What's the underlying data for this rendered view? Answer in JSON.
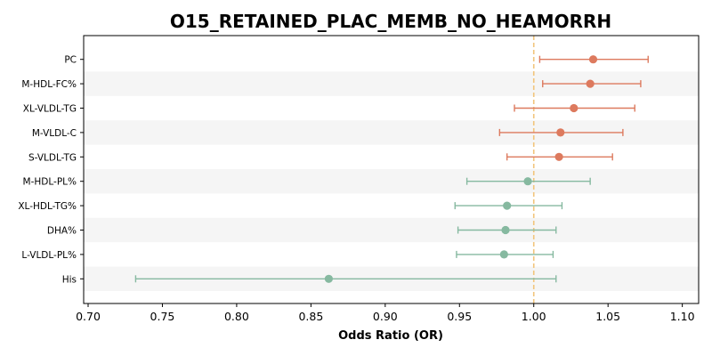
{
  "chart_data": {
    "type": "forest",
    "title": "O15_RETAINED_PLAC_MEMB_NO_HEAMORRH",
    "xlabel": "Odds Ratio (OR)",
    "ylabel": "",
    "xlim": [
      0.697,
      1.111
    ],
    "xticks": [
      "0.70",
      "0.75",
      "0.80",
      "0.85",
      "0.90",
      "0.95",
      "1.00",
      "1.05",
      "1.10"
    ],
    "reference_line": 1.0,
    "grid": false,
    "row_banding": true,
    "colors": {
      "positive": "#dd7a5e",
      "negative": "#86b9a0",
      "reference": "#f2c57c",
      "band": "#f5f5f5"
    },
    "rows": [
      {
        "label": "PC",
        "or": 1.04,
        "lo": 1.004,
        "hi": 1.077
      },
      {
        "label": "M-HDL-FC%",
        "or": 1.038,
        "lo": 1.006,
        "hi": 1.072
      },
      {
        "label": "XL-VLDL-TG",
        "or": 1.027,
        "lo": 0.987,
        "hi": 1.068
      },
      {
        "label": "M-VLDL-C",
        "or": 1.018,
        "lo": 0.977,
        "hi": 1.06
      },
      {
        "label": "S-VLDL-TG",
        "or": 1.017,
        "lo": 0.982,
        "hi": 1.053
      },
      {
        "label": "M-HDL-PL%",
        "or": 0.996,
        "lo": 0.955,
        "hi": 1.038
      },
      {
        "label": "XL-HDL-TG%",
        "or": 0.982,
        "lo": 0.947,
        "hi": 1.019
      },
      {
        "label": "DHA%",
        "or": 0.981,
        "lo": 0.949,
        "hi": 1.015
      },
      {
        "label": "L-VLDL-PL%",
        "or": 0.98,
        "lo": 0.948,
        "hi": 1.013
      },
      {
        "label": "His",
        "or": 0.862,
        "lo": 0.732,
        "hi": 1.015
      }
    ]
  }
}
